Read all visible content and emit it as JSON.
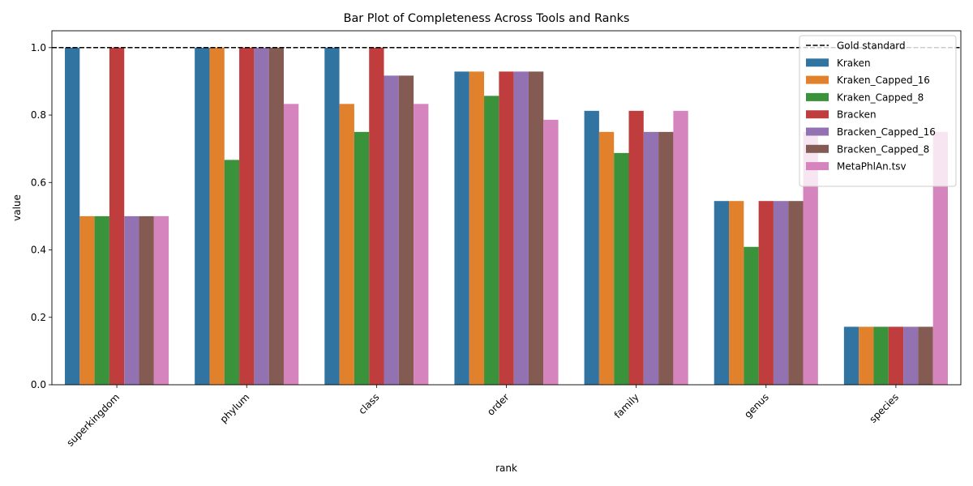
{
  "chart_data": {
    "type": "bar",
    "title": "Bar Plot of Completeness Across Tools and Ranks",
    "xlabel": "rank",
    "ylabel": "value",
    "ylim": [
      0,
      1.05
    ],
    "yticks": [
      "0.0",
      "0.2",
      "0.4",
      "0.6",
      "0.8",
      "1.0"
    ],
    "categories": [
      "superkingdom",
      "phylum",
      "class",
      "order",
      "family",
      "genus",
      "species"
    ],
    "reference_line": {
      "name": "Gold standard",
      "value": 1.0,
      "style": "dashed",
      "color": "#000000"
    },
    "legend_position": "top-right",
    "grid": false,
    "series": [
      {
        "name": "Kraken",
        "color": "#3274a1",
        "values": [
          1.0,
          1.0,
          1.0,
          0.929,
          0.8125,
          0.545,
          0.172
        ]
      },
      {
        "name": "Kraken_Capped_16",
        "color": "#e1812c",
        "values": [
          0.5,
          1.0,
          0.833,
          0.929,
          0.75,
          0.545,
          0.172
        ]
      },
      {
        "name": "Kraken_Capped_8",
        "color": "#3a923a",
        "values": [
          0.5,
          0.667,
          0.75,
          0.857,
          0.6875,
          0.409,
          0.172
        ]
      },
      {
        "name": "Bracken",
        "color": "#c03d3e",
        "values": [
          1.0,
          1.0,
          1.0,
          0.929,
          0.8125,
          0.545,
          0.172
        ]
      },
      {
        "name": "Bracken_Capped_16",
        "color": "#9372b2",
        "values": [
          0.5,
          1.0,
          0.917,
          0.929,
          0.75,
          0.545,
          0.172
        ]
      },
      {
        "name": "Bracken_Capped_8",
        "color": "#845b53",
        "values": [
          0.5,
          1.0,
          0.917,
          0.929,
          0.75,
          0.545,
          0.172
        ]
      },
      {
        "name": "MetaPhlAn.tsv",
        "color": "#d684bd",
        "values": [
          0.5,
          0.833,
          0.833,
          0.786,
          0.8125,
          0.75,
          0.75
        ]
      }
    ]
  }
}
